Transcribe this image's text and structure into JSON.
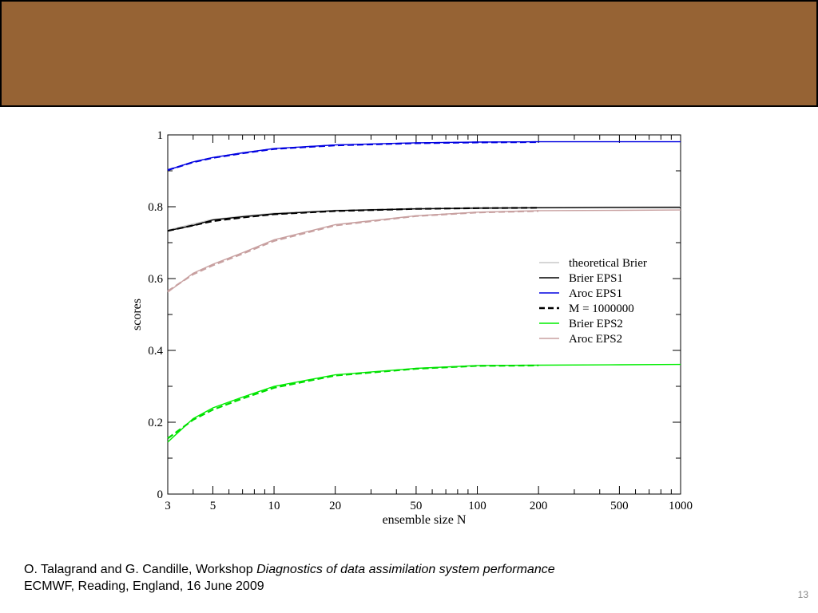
{
  "slide": {
    "banner_color": "#966334",
    "caption": {
      "line1_prefix": "O. Talagrand and G. Candille, Workshop ",
      "line1_italic": "Diagnostics of data assimilation system performance",
      "line2": "ECMWF, Reading, England, 16 June 2009"
    },
    "page_number": "13"
  },
  "chart_data": {
    "type": "line",
    "xlabel": "ensemble size N",
    "ylabel": "scores",
    "x_scale": "log",
    "xlim": [
      3,
      1000
    ],
    "ylim": [
      0,
      1
    ],
    "x_ticks": [
      3,
      5,
      10,
      20,
      50,
      100,
      200,
      500,
      1000
    ],
    "x_tick_labels": [
      "3",
      "5",
      "10",
      "20",
      "50",
      "100",
      "200",
      "500",
      "1000"
    ],
    "y_ticks": [
      0,
      0.2,
      0.4,
      0.6,
      0.8,
      1
    ],
    "y_tick_labels": [
      "0",
      "0.2",
      "0.4",
      "0.6",
      "0.8",
      "1"
    ],
    "grid": false,
    "legend_position": "right",
    "series": [
      {
        "name": "theoretical Brier",
        "color": "#c8c8c8",
        "dash": "solid",
        "x": [
          3,
          4,
          5,
          7,
          10,
          20,
          50,
          100,
          200,
          500,
          1000
        ],
        "y": [
          0.735,
          0.752,
          0.765,
          0.774,
          0.782,
          0.79,
          0.795,
          0.797,
          0.798,
          0.799,
          0.8
        ]
      },
      {
        "name": "Brier EPS1",
        "color": "#000000",
        "dash": "solid",
        "x": [
          3,
          4,
          5,
          7,
          10,
          20,
          50,
          100,
          200,
          500,
          1000
        ],
        "y": [
          0.733,
          0.748,
          0.763,
          0.772,
          0.78,
          0.789,
          0.794,
          0.796,
          0.797,
          0.798,
          0.798
        ]
      },
      {
        "name": "Aroc EPS1",
        "color": "#0000e0",
        "dash": "solid",
        "x": [
          3,
          4,
          5,
          7,
          10,
          20,
          50,
          100,
          200,
          500,
          1000
        ],
        "y": [
          0.902,
          0.925,
          0.937,
          0.95,
          0.962,
          0.972,
          0.978,
          0.98,
          0.981,
          0.981,
          0.981
        ]
      },
      {
        "name": "M = 1000000",
        "color": "#000000",
        "dash": "dashed",
        "x": [
          3,
          4,
          5,
          7,
          10,
          20,
          50,
          100,
          200
        ],
        "y": [
          0.733,
          0.748,
          0.76,
          0.77,
          0.779,
          0.788,
          0.794,
          0.796,
          0.797
        ]
      },
      {
        "name": "Brier EPS2",
        "color": "#00ee00",
        "dash": "solid",
        "x": [
          3,
          4,
          5,
          7,
          10,
          20,
          50,
          100,
          200,
          500,
          1000
        ],
        "y": [
          0.145,
          0.21,
          0.24,
          0.27,
          0.3,
          0.332,
          0.35,
          0.358,
          0.359,
          0.36,
          0.361
        ]
      },
      {
        "name": "Aroc EPS2",
        "color": "#c8a0a0",
        "dash": "solid",
        "x": [
          3,
          4,
          5,
          7,
          10,
          20,
          50,
          100,
          200,
          500,
          1000
        ],
        "y": [
          0.562,
          0.615,
          0.64,
          0.672,
          0.708,
          0.75,
          0.775,
          0.785,
          0.789,
          0.79,
          0.791
        ]
      }
    ],
    "dashed_overlays": [
      {
        "color": "#0000e0",
        "x": [
          3,
          4,
          5,
          7,
          10,
          20,
          50,
          100,
          200
        ],
        "y": [
          0.902,
          0.924,
          0.936,
          0.949,
          0.961,
          0.971,
          0.977,
          0.979,
          0.98
        ]
      },
      {
        "color": "#00dd00",
        "x": [
          3,
          4,
          5,
          7,
          10,
          20,
          50,
          100,
          200
        ],
        "y": [
          0.155,
          0.207,
          0.235,
          0.266,
          0.296,
          0.33,
          0.349,
          0.357,
          0.358
        ]
      },
      {
        "color": "#c8a0a0",
        "x": [
          3,
          4,
          5,
          7,
          10,
          20,
          50,
          100,
          200
        ],
        "y": [
          0.565,
          0.612,
          0.637,
          0.669,
          0.705,
          0.748,
          0.774,
          0.784,
          0.788
        ]
      }
    ]
  }
}
